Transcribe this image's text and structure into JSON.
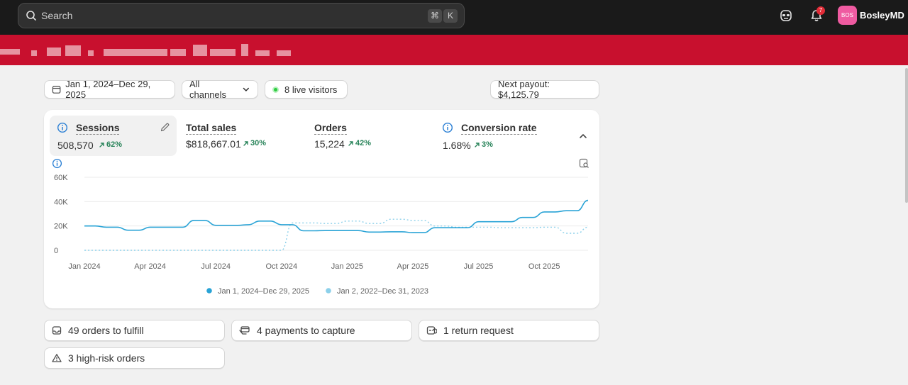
{
  "topbar": {
    "search_placeholder": "Search",
    "shortcut_keys": [
      "⌘",
      "K"
    ],
    "notification_count": "7",
    "avatar_initials": "BOS",
    "user_name": "BosleyMD"
  },
  "filters": {
    "date_range": "Jan 1, 2024–Dec 29, 2025",
    "channels": "All channels",
    "live_visitors": "8 live visitors",
    "next_payout": "Next payout: $4,125.79"
  },
  "metrics": [
    {
      "title": "Sessions",
      "value": "508,570",
      "change": "62%"
    },
    {
      "title": "Total sales",
      "value": "$818,667.01",
      "change": "30%"
    },
    {
      "title": "Orders",
      "value": "15,224",
      "change": "42%"
    },
    {
      "title": "Conversion rate",
      "value": "1.68%",
      "change": "3%"
    }
  ],
  "chart_data": {
    "type": "line",
    "x_tick_labels": [
      "Jan 2024",
      "Apr 2024",
      "Jul 2024",
      "Oct 2024",
      "Jan 2025",
      "Apr 2025",
      "Jul 2025",
      "Oct 2025"
    ],
    "y_tick_labels": [
      "0",
      "20K",
      "40K",
      "60K"
    ],
    "ylim": [
      0,
      60000
    ],
    "grid": true,
    "legend_position": "bottom",
    "series": [
      {
        "name": "Jan 1, 2024–Dec 29, 2025",
        "style": "solid",
        "color": "#29a3d6",
        "values": [
          20000,
          20000,
          19000,
          19000,
          16500,
          16500,
          19000,
          19000,
          19000,
          19000,
          24500,
          24500,
          20500,
          20500,
          20500,
          21000,
          24000,
          24000,
          21000,
          21000,
          16000,
          16000,
          16200,
          16200,
          16200,
          16200,
          15000,
          15000,
          15200,
          15200,
          14500,
          14500,
          18500,
          18500,
          18500,
          18500,
          23500,
          23500,
          23500,
          23500,
          27000,
          27000,
          31500,
          31500,
          32500,
          32500,
          41000
        ]
      },
      {
        "name": "Jan 2, 2022–Dec 31, 2023",
        "style": "dotted",
        "color": "#8cd0ea",
        "values": [
          0,
          0,
          0,
          0,
          0,
          0,
          0,
          0,
          0,
          0,
          0,
          0,
          0,
          0,
          0,
          0,
          0,
          0,
          0,
          22500,
          22500,
          22500,
          22000,
          22000,
          24000,
          24000,
          22000,
          22000,
          25500,
          25500,
          24500,
          24500,
          20000,
          20000,
          19000,
          19000,
          19000,
          19000,
          18500,
          18500,
          18500,
          18500,
          19000,
          19000,
          14000,
          14000,
          19000
        ]
      }
    ]
  },
  "tasks": [
    {
      "label": "49 orders to fulfill",
      "icon": "inbox-icon"
    },
    {
      "label": "4 payments to capture",
      "icon": "payment-icon"
    },
    {
      "label": "1 return request",
      "icon": "return-icon"
    },
    {
      "label": "3 high-risk orders",
      "icon": "alert-triangle-icon"
    }
  ]
}
